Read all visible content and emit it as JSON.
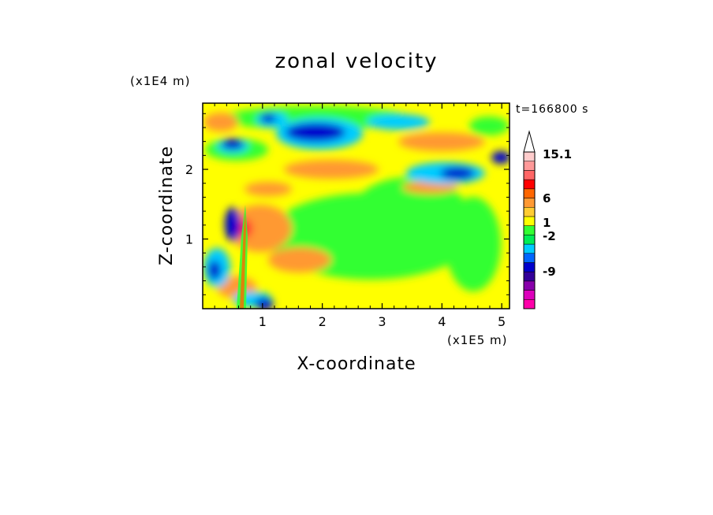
{
  "chart_data": {
    "type": "heatmap",
    "title": "zonal velocity",
    "xlabel": "X-coordinate",
    "ylabel": "Z-coordinate",
    "x_unit": "(x1E5 m)",
    "y_unit": "(x1E4 m)",
    "time_label": "t=166800 s",
    "xlim": [
      0,
      5.13
    ],
    "ylim": [
      0,
      2.95
    ],
    "xticks": [
      "1",
      "2",
      "3",
      "4",
      "5"
    ],
    "yticks": [
      "1",
      "2"
    ],
    "colorbar": {
      "tick_labels": [
        "15.1",
        "6",
        "1",
        "-2",
        "-9"
      ],
      "colors": [
        "#ff00aa",
        "#dd00bb",
        "#8800aa",
        "#330099",
        "#0000cc",
        "#0066ff",
        "#00ccff",
        "#00ee55",
        "#33ff33",
        "#ffff00",
        "#ffcc33",
        "#ff9933",
        "#ff6600",
        "#ff0000",
        "#ff6666",
        "#ff9999",
        "#ffcccc"
      ],
      "extends_max": true
    }
  }
}
